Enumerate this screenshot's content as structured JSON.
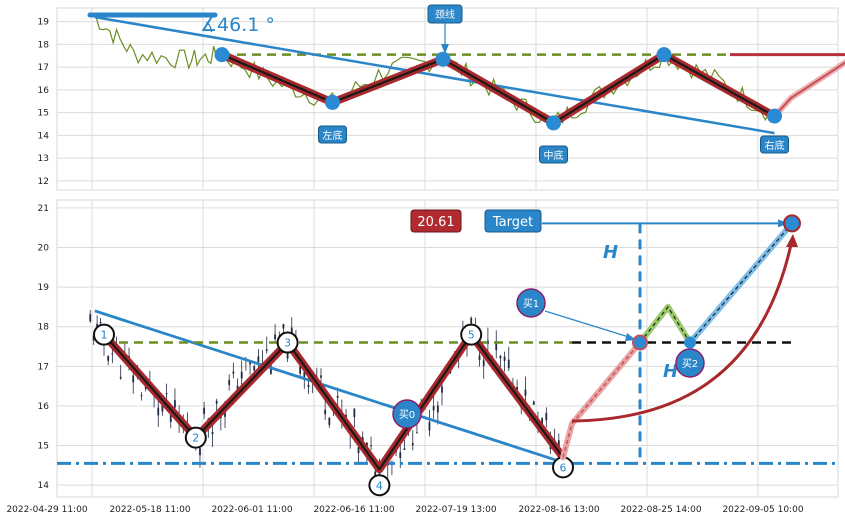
{
  "chart_data": [
    {
      "type": "line",
      "panel": "top",
      "ylim": [
        11.6,
        19.6
      ],
      "yticks": [
        12,
        13,
        14,
        15,
        16,
        17,
        18,
        19
      ],
      "grid": true,
      "angle_label": "∡46.1 °",
      "labels": {
        "neckline": "颈线",
        "left_bottom": "左底",
        "middle_bottom": "中底",
        "right_bottom": "右底"
      },
      "pattern_points": [
        {
          "x": 0.0,
          "y": 17.55
        },
        {
          "x": 1.0,
          "y": 15.45
        },
        {
          "x": 2.0,
          "y": 17.35
        },
        {
          "x": 3.0,
          "y": 14.55
        },
        {
          "x": 4.0,
          "y": 17.55
        },
        {
          "x": 5.0,
          "y": 14.85
        }
      ],
      "neckline_y": 17.55,
      "trendline": [
        {
          "x": -1.15,
          "y": 19.2
        },
        {
          "x": 5.0,
          "y": 14.1
        }
      ],
      "projection": [
        {
          "x": 5.0,
          "y": 14.85
        },
        {
          "x": 5.15,
          "y": 15.65
        },
        {
          "x": 5.75,
          "y": 17.55
        }
      ]
    },
    {
      "type": "candlestick",
      "panel": "bottom",
      "ylim": [
        13.7,
        21.2
      ],
      "yticks": [
        14,
        15,
        16,
        17,
        18,
        19,
        20,
        21
      ],
      "grid": true,
      "x_tick_labels": [
        "2022-04-29 11:00",
        "2022-05-18 11:00",
        "2022-06-01 11:00",
        "2022-06-16 11:00",
        "2022-07-19 13:00",
        "2022-08-16 13:00",
        "2022-08-25 14:00",
        "2022-09-05 10:00"
      ],
      "points": [
        {
          "label": "1",
          "x": 0.0,
          "y": 17.8
        },
        {
          "label": "2",
          "x": 1.0,
          "y": 15.2
        },
        {
          "label": "3",
          "x": 2.0,
          "y": 17.6
        },
        {
          "label": "4",
          "x": 3.0,
          "y": 14.4
        },
        {
          "label": "5",
          "x": 4.0,
          "y": 17.8
        },
        {
          "label": "6",
          "x": 5.0,
          "y": 14.7
        }
      ],
      "neckline_y": 17.6,
      "support_y": 14.55,
      "trendline": [
        {
          "x": -0.1,
          "y": 18.4
        },
        {
          "x": 5.1,
          "y": 14.5
        }
      ],
      "target_value": "20.61",
      "target_label": "Target",
      "height_label": "H",
      "buy_labels": [
        "买1",
        "买2",
        "买0"
      ]
    }
  ]
}
